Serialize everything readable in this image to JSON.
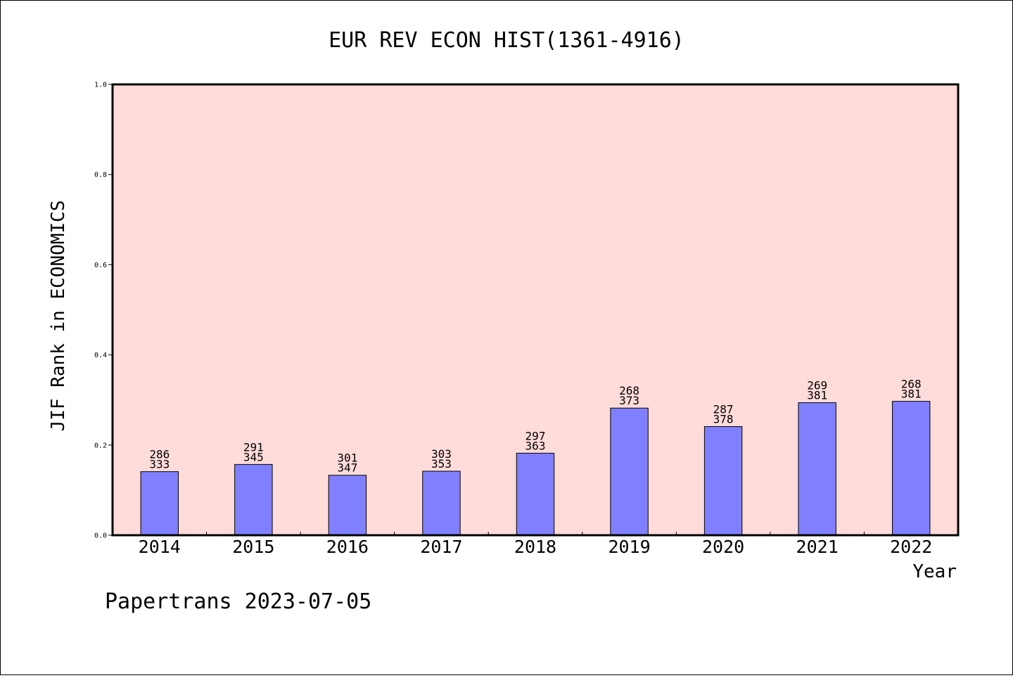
{
  "chart_data": {
    "type": "bar",
    "title": "EUR REV ECON HIST(1361-4916)",
    "xlabel": "Year",
    "ylabel": "JIF Rank in ECONOMICS",
    "ylim": [
      0,
      1.0
    ],
    "yticks": [
      "0.0",
      "0.2",
      "0.4",
      "0.6",
      "0.8",
      "1.0"
    ],
    "categories": [
      "2014",
      "2015",
      "2016",
      "2017",
      "2018",
      "2019",
      "2020",
      "2021",
      "2022"
    ],
    "values": [
      0.141,
      0.157,
      0.133,
      0.142,
      0.182,
      0.282,
      0.241,
      0.294,
      0.297
    ],
    "rank": [
      "286",
      "291",
      "301",
      "303",
      "297",
      "268",
      "287",
      "269",
      "268"
    ],
    "total": [
      "333",
      "345",
      "347",
      "353",
      "363",
      "373",
      "378",
      "381",
      "381"
    ],
    "grid": false,
    "plot_background": "#ffdcd9",
    "bar_color": "#8080ff"
  },
  "footer": {
    "text": "Papertrans 2023-07-05"
  }
}
